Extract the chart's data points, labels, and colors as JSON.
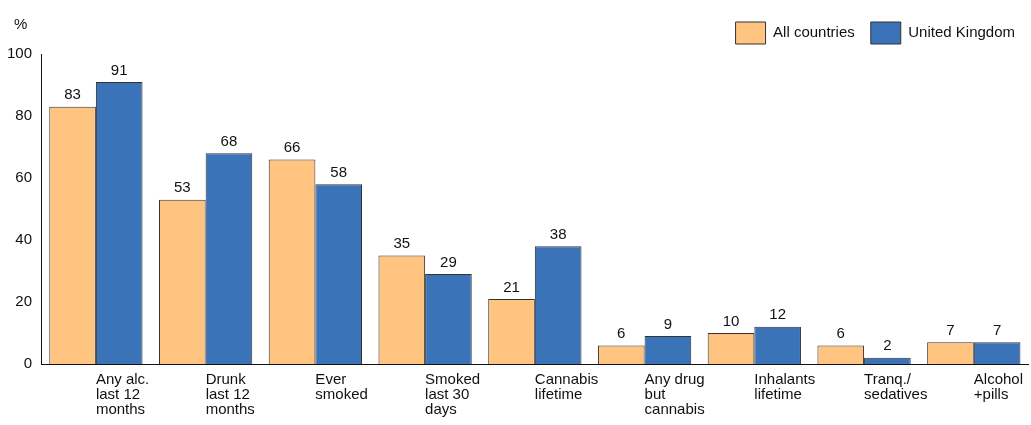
{
  "chart_data": {
    "type": "bar",
    "ylabel": "%",
    "categories": [
      "Any alc. last 12 months",
      "Drunk last 12 months",
      "Ever smoked",
      "Smoked last 30 days",
      "Cannabis lifetime",
      "Any drug but cannabis",
      "Inhalants lifetime",
      "Tranq./ sedatives",
      "Alcohol +pills"
    ],
    "series": [
      {
        "name": "All countries",
        "color": "#ffc480",
        "values": [
          83,
          53,
          66,
          35,
          21,
          6,
          10,
          6,
          7
        ]
      },
      {
        "name": "United Kingdom",
        "color": "#3b73b9",
        "values": [
          91,
          68,
          58,
          29,
          38,
          9,
          12,
          2,
          7
        ]
      }
    ],
    "ylim": [
      0,
      100
    ],
    "yticks": [
      0,
      20,
      40,
      60,
      80,
      100
    ],
    "grid": false,
    "legend": "top right",
    "data_labels": true
  }
}
